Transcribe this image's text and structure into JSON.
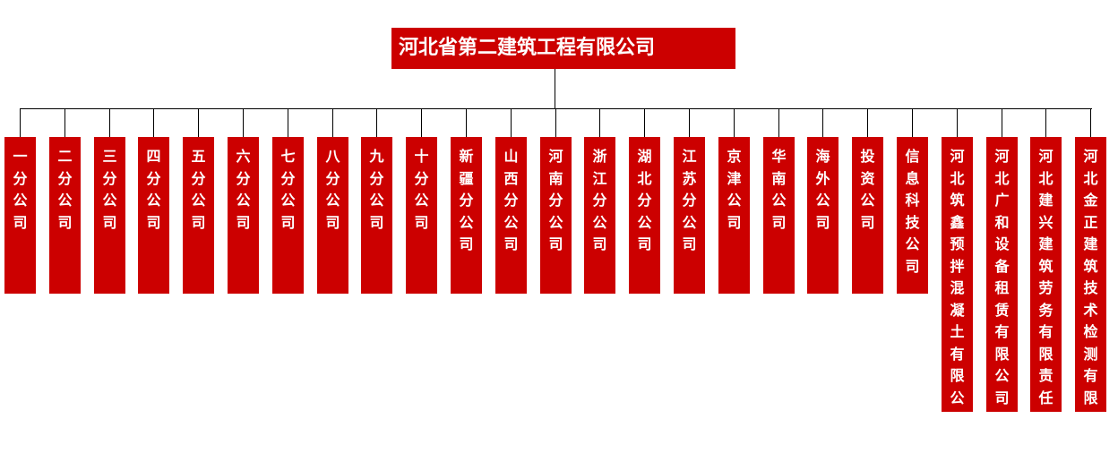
{
  "root": {
    "label": "河北省第二建筑工程有限公司"
  },
  "colors": {
    "box": "#cc0000",
    "text": "#ffffff",
    "connector": "#000000"
  },
  "children": [
    {
      "label": "一分公司"
    },
    {
      "label": "二分公司"
    },
    {
      "label": "三分公司"
    },
    {
      "label": "四分公司"
    },
    {
      "label": "五分公司"
    },
    {
      "label": "六分公司"
    },
    {
      "label": "七分公司"
    },
    {
      "label": "八分公司"
    },
    {
      "label": "九分公司"
    },
    {
      "label": "十分公司"
    },
    {
      "label": "新疆分公司"
    },
    {
      "label": "山西分公司"
    },
    {
      "label": "河南分公司"
    },
    {
      "label": "浙江分公司"
    },
    {
      "label": "湖北分公司"
    },
    {
      "label": "江苏分公司"
    },
    {
      "label": "京津公司"
    },
    {
      "label": "华南公司"
    },
    {
      "label": "海外公司"
    },
    {
      "label": "投资公司"
    },
    {
      "label": "信息科技公司"
    },
    {
      "label": "河北筑鑫预拌混凝土有限公司"
    },
    {
      "label": "河北广和设备租赁有限公司"
    },
    {
      "label": "河北建兴建筑劳务有限责任公司"
    },
    {
      "label": "河北金正建筑技术检测有限公司"
    }
  ]
}
